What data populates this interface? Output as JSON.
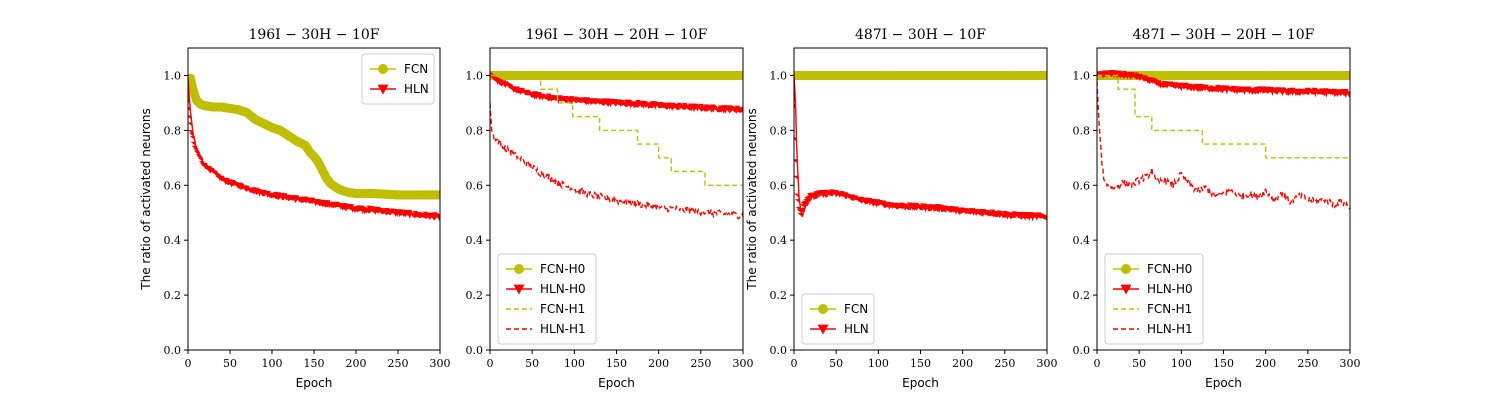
{
  "colors": {
    "fcn": "#bfbf00",
    "hln": "#ff0000"
  },
  "chart_data": [
    {
      "type": "line",
      "title": "196I − 30H − 10F",
      "xlabel": "Epoch",
      "ylabel": "The ratio of activated neurons",
      "xlim": [
        0,
        300
      ],
      "ylim": [
        0,
        1.1
      ],
      "xticks": [
        "0",
        "50",
        "100",
        "150",
        "200",
        "250",
        "300"
      ],
      "yticks": [
        "0.0",
        "0.2",
        "0.4",
        "0.6",
        "0.8",
        "1.0"
      ],
      "legend_position": "upper-right",
      "series": [
        {
          "name": "FCN",
          "color": "#bfbf00",
          "style": "circle-marker",
          "x": [
            0,
            3,
            6,
            10,
            15,
            20,
            30,
            40,
            50,
            60,
            70,
            80,
            90,
            100,
            110,
            120,
            130,
            140,
            145,
            150,
            155,
            160,
            165,
            170,
            175,
            180,
            190,
            200,
            220,
            250,
            280,
            300
          ],
          "y": [
            0.97,
            0.99,
            0.95,
            0.91,
            0.895,
            0.89,
            0.885,
            0.885,
            0.88,
            0.875,
            0.865,
            0.84,
            0.825,
            0.81,
            0.8,
            0.78,
            0.76,
            0.745,
            0.72,
            0.705,
            0.685,
            0.655,
            0.625,
            0.605,
            0.595,
            0.585,
            0.575,
            0.57,
            0.57,
            0.565,
            0.565,
            0.565
          ]
        },
        {
          "name": "HLN",
          "color": "#ff0000",
          "style": "triangle-marker",
          "x": [
            0,
            2,
            4,
            6,
            8,
            10,
            15,
            20,
            30,
            40,
            50,
            60,
            80,
            100,
            120,
            150,
            180,
            200,
            220,
            250,
            280,
            300
          ],
          "y": [
            0.99,
            0.9,
            0.84,
            0.79,
            0.76,
            0.73,
            0.7,
            0.67,
            0.645,
            0.62,
            0.605,
            0.595,
            0.575,
            0.56,
            0.55,
            0.535,
            0.52,
            0.51,
            0.505,
            0.495,
            0.485,
            0.48
          ]
        }
      ]
    },
    {
      "type": "line",
      "title": "196I − 30H − 20H − 10F",
      "xlabel": "Epoch",
      "ylabel": "",
      "xlim": [
        0,
        300
      ],
      "ylim": [
        0,
        1.1
      ],
      "xticks": [
        "0",
        "50",
        "100",
        "150",
        "200",
        "250",
        "300"
      ],
      "yticks": [
        "0.0",
        "0.2",
        "0.4",
        "0.6",
        "0.8",
        "1.0"
      ],
      "legend_position": "lower-left",
      "series": [
        {
          "name": "FCN-H0",
          "color": "#bfbf00",
          "style": "circle-marker",
          "x": [
            0,
            300
          ],
          "y": [
            1.0,
            1.0
          ]
        },
        {
          "name": "HLN-H0",
          "color": "#ff0000",
          "style": "triangle-marker",
          "x": [
            0,
            5,
            10,
            20,
            30,
            40,
            50,
            60,
            80,
            100,
            120,
            150,
            180,
            200,
            230,
            260,
            300
          ],
          "y": [
            1.0,
            0.99,
            0.975,
            0.96,
            0.945,
            0.935,
            0.925,
            0.92,
            0.91,
            0.905,
            0.9,
            0.895,
            0.89,
            0.885,
            0.88,
            0.875,
            0.87
          ]
        },
        {
          "name": "FCN-H1",
          "color": "#bfbf00",
          "style": "dashed",
          "x": [
            0,
            60,
            60,
            80,
            80,
            98,
            98,
            130,
            130,
            175,
            175,
            200,
            200,
            215,
            215,
            255,
            255,
            300
          ],
          "y": [
            1.0,
            1.0,
            0.95,
            0.95,
            0.9,
            0.9,
            0.85,
            0.85,
            0.8,
            0.8,
            0.75,
            0.75,
            0.7,
            0.7,
            0.65,
            0.65,
            0.6,
            0.6
          ]
        },
        {
          "name": "HLN-H1",
          "color": "#ff0000",
          "style": "dashed",
          "x": [
            0,
            2,
            5,
            10,
            20,
            30,
            40,
            50,
            60,
            80,
            100,
            120,
            150,
            180,
            200,
            230,
            260,
            300
          ],
          "y": [
            0.9,
            0.8,
            0.77,
            0.76,
            0.73,
            0.71,
            0.69,
            0.665,
            0.645,
            0.61,
            0.585,
            0.565,
            0.545,
            0.53,
            0.52,
            0.51,
            0.5,
            0.49
          ]
        }
      ]
    },
    {
      "type": "line",
      "title": "487I − 30H − 10F",
      "xlabel": "Epoch",
      "ylabel": "The ratio of activated neurons",
      "xlim": [
        0,
        300
      ],
      "ylim": [
        0,
        1.1
      ],
      "xticks": [
        "0",
        "50",
        "100",
        "150",
        "200",
        "250",
        "300"
      ],
      "yticks": [
        "0.0",
        "0.2",
        "0.4",
        "0.6",
        "0.8",
        "1.0"
      ],
      "legend_position": "lower-left",
      "series": [
        {
          "name": "FCN",
          "color": "#bfbf00",
          "style": "circle-marker",
          "x": [
            0,
            300
          ],
          "y": [
            1.0,
            1.0
          ]
        },
        {
          "name": "HLN",
          "color": "#ff0000",
          "style": "triangle-marker",
          "x": [
            0,
            1,
            2,
            3,
            4,
            5,
            6,
            8,
            10,
            12,
            15,
            20,
            30,
            40,
            50,
            60,
            80,
            100,
            120,
            150,
            180,
            200,
            230,
            260,
            300
          ],
          "y": [
            1.0,
            0.95,
            0.88,
            0.76,
            0.68,
            0.62,
            0.56,
            0.51,
            0.49,
            0.51,
            0.53,
            0.55,
            0.56,
            0.565,
            0.565,
            0.56,
            0.54,
            0.53,
            0.52,
            0.515,
            0.51,
            0.5,
            0.495,
            0.485,
            0.48
          ]
        }
      ]
    },
    {
      "type": "line",
      "title": "487I − 30H − 20H − 10F",
      "xlabel": "Epoch",
      "ylabel": "",
      "xlim": [
        0,
        300
      ],
      "ylim": [
        0,
        1.1
      ],
      "xticks": [
        "0",
        "50",
        "100",
        "150",
        "200",
        "250",
        "300"
      ],
      "yticks": [
        "0.0",
        "0.2",
        "0.4",
        "0.6",
        "0.8",
        "1.0"
      ],
      "legend_position": "lower-left",
      "series": [
        {
          "name": "FCN-H0",
          "color": "#bfbf00",
          "style": "circle-marker",
          "x": [
            0,
            300
          ],
          "y": [
            1.0,
            1.0
          ]
        },
        {
          "name": "HLN-H0",
          "color": "#ff0000",
          "style": "triangle-marker",
          "x": [
            0,
            20,
            40,
            50,
            60,
            70,
            80,
            100,
            120,
            150,
            180,
            200,
            230,
            260,
            300
          ],
          "y": [
            1.0,
            1.0,
            0.995,
            0.99,
            0.98,
            0.97,
            0.96,
            0.955,
            0.95,
            0.945,
            0.94,
            0.94,
            0.935,
            0.935,
            0.93
          ]
        },
        {
          "name": "FCN-H1",
          "color": "#bfbf00",
          "style": "dashed",
          "x": [
            0,
            25,
            25,
            45,
            45,
            65,
            65,
            125,
            125,
            200,
            200,
            300
          ],
          "y": [
            1.0,
            1.0,
            0.95,
            0.95,
            0.85,
            0.85,
            0.8,
            0.8,
            0.75,
            0.75,
            0.7,
            0.7
          ]
        },
        {
          "name": "HLN-H1",
          "color": "#ff0000",
          "style": "dashed",
          "x": [
            0,
            2,
            4,
            6,
            8,
            10,
            15,
            20,
            30,
            40,
            50,
            60,
            65,
            70,
            80,
            90,
            100,
            110,
            120,
            130,
            140,
            150,
            160,
            170,
            180,
            190,
            200,
            210,
            220,
            230,
            240,
            250,
            260,
            270,
            280,
            290,
            300
          ],
          "y": [
            0.98,
            0.85,
            0.75,
            0.68,
            0.63,
            0.61,
            0.6,
            0.59,
            0.61,
            0.6,
            0.62,
            0.63,
            0.66,
            0.61,
            0.62,
            0.6,
            0.64,
            0.6,
            0.58,
            0.59,
            0.56,
            0.57,
            0.58,
            0.56,
            0.57,
            0.56,
            0.58,
            0.55,
            0.57,
            0.54,
            0.56,
            0.55,
            0.54,
            0.55,
            0.53,
            0.54,
            0.52
          ]
        }
      ]
    }
  ]
}
